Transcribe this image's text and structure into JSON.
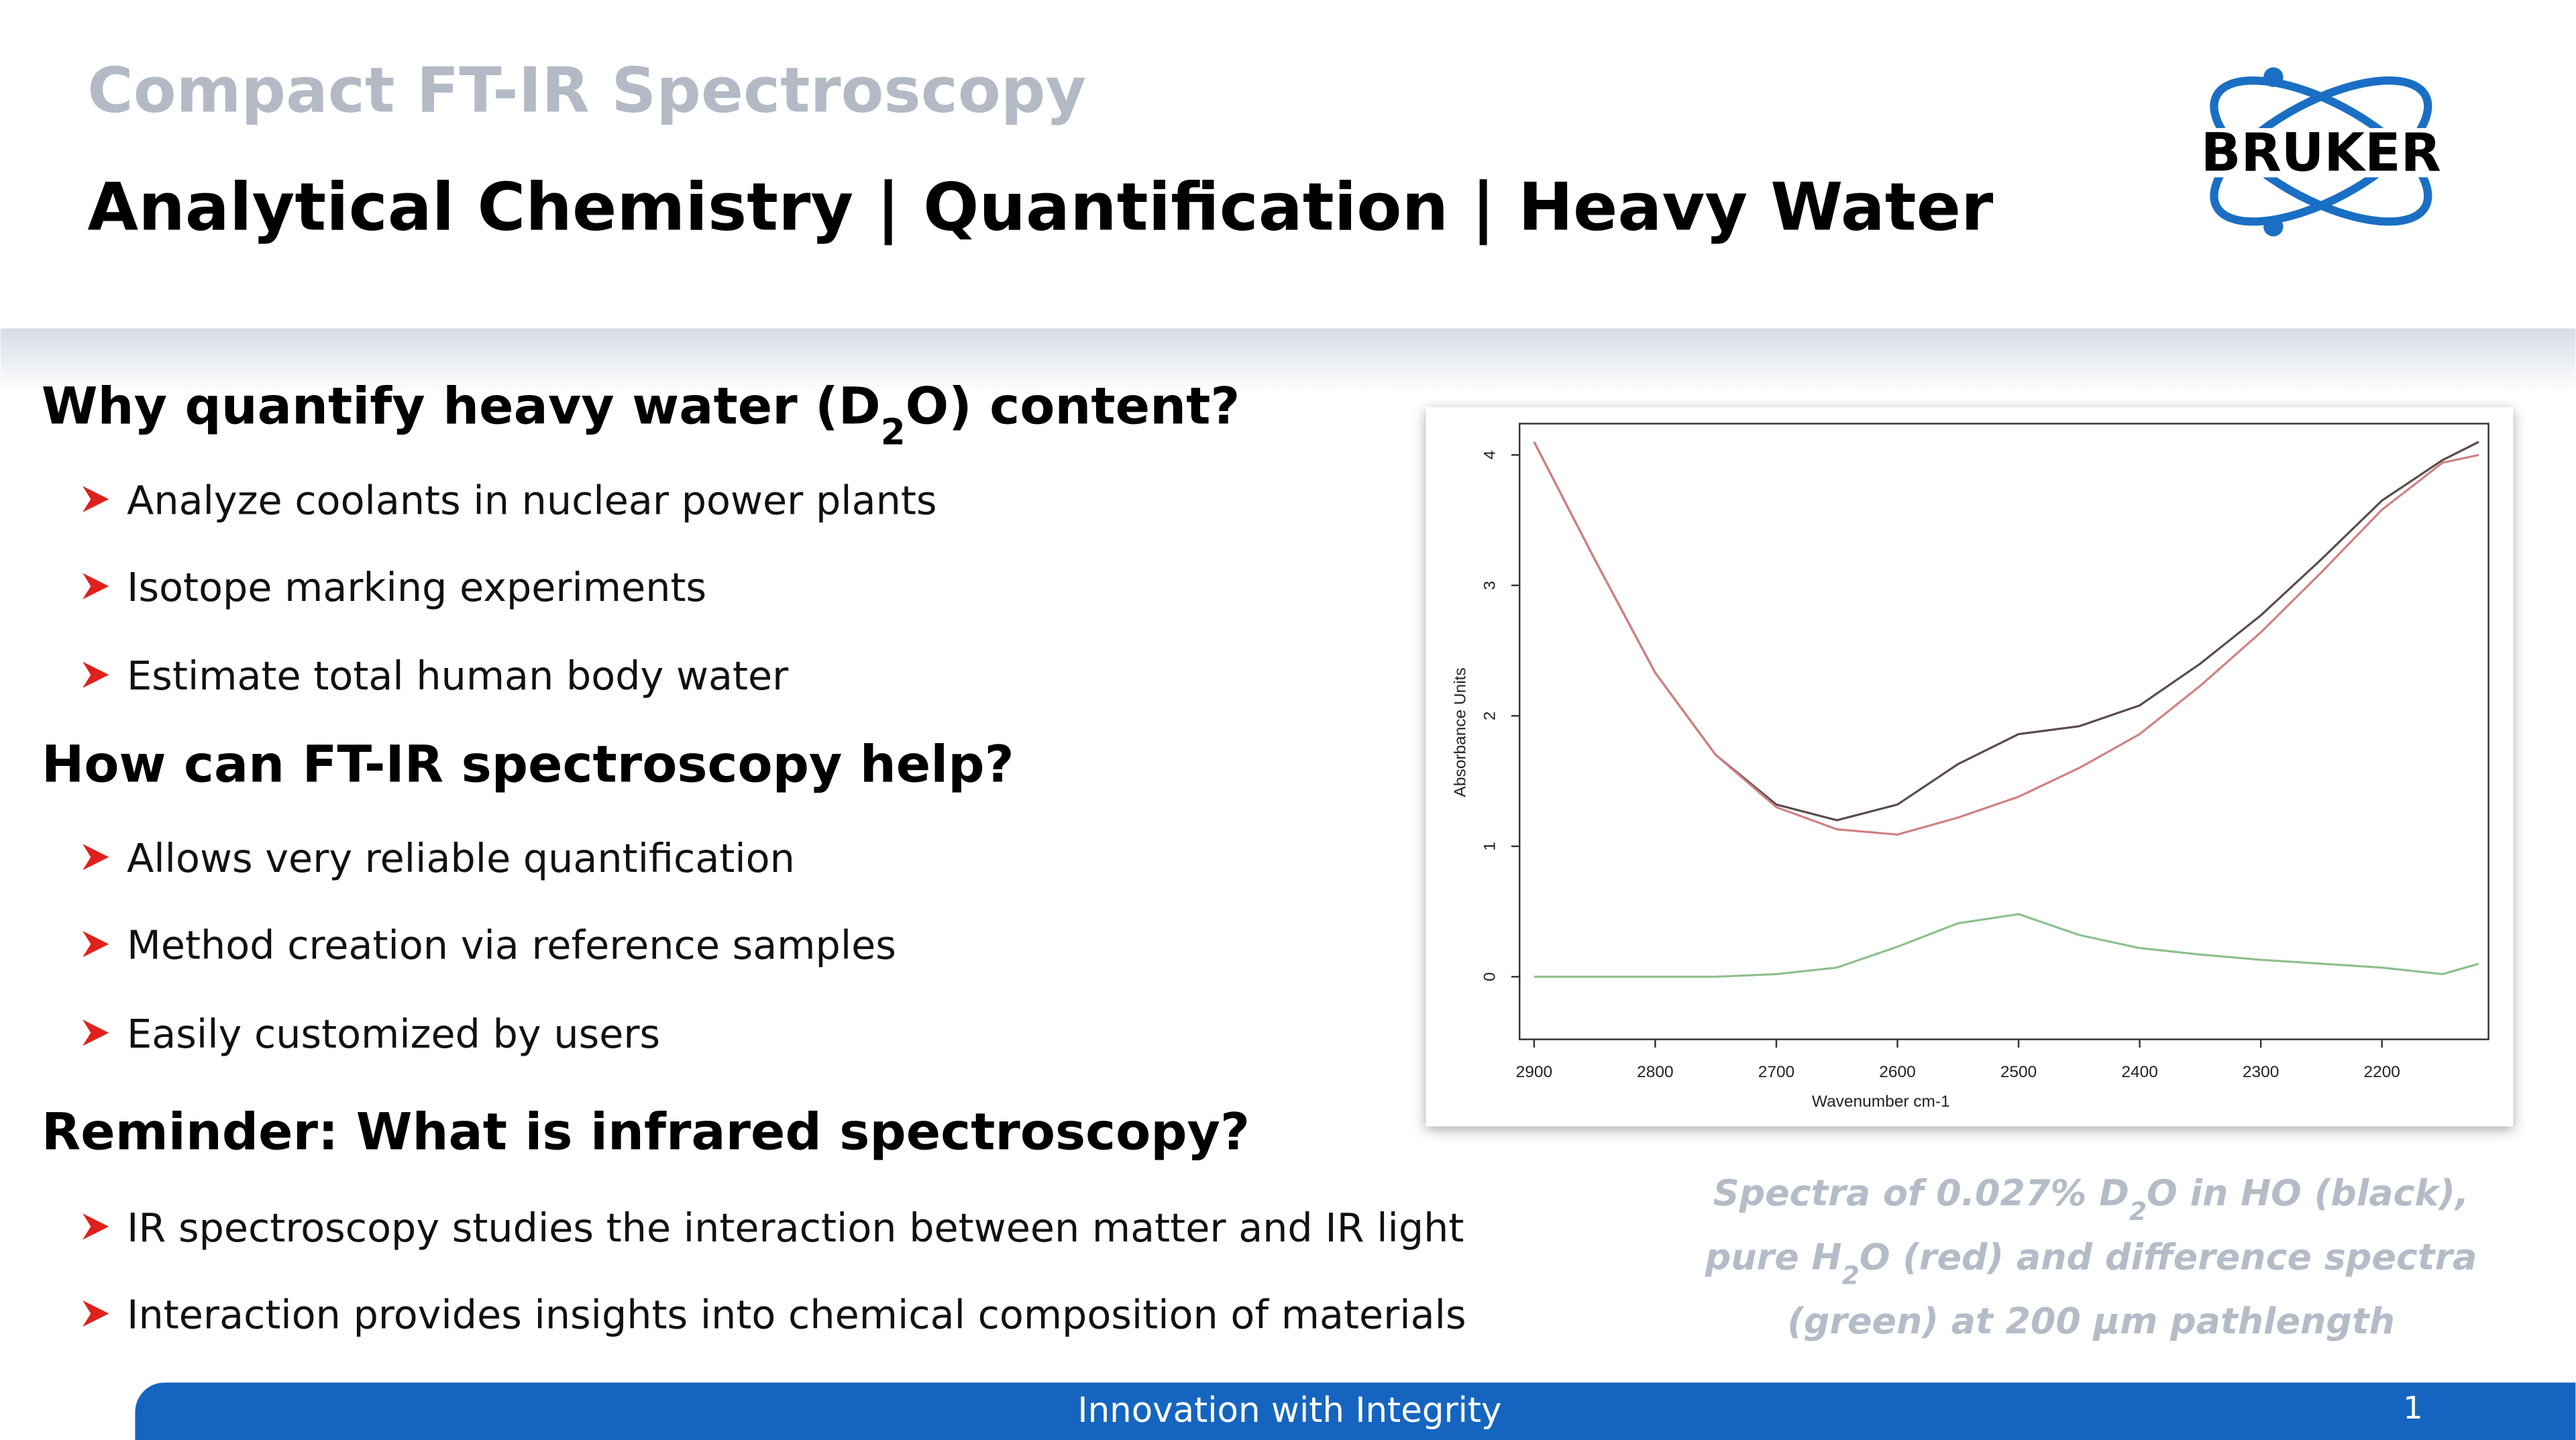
{
  "header": {
    "subtitle": "Compact FT-IR Spectroscopy",
    "title": "Analytical Chemistry | Quantification | Heavy Water",
    "logo": "BRUKER"
  },
  "sections": [
    {
      "heading": [
        "Why quantify heavy water (D",
        "2",
        "O) content?"
      ],
      "bullets": [
        "Analyze coolants in nuclear power plants",
        "Isotope marking experiments",
        "Estimate total human body water"
      ]
    },
    {
      "heading": [
        "How can FT-IR spectroscopy help?"
      ],
      "bullets": [
        "Allows very reliable quantification",
        "Method creation via reference samples",
        "Easily customized by users"
      ]
    },
    {
      "heading": [
        "Reminder: What is infrared spectroscopy?"
      ],
      "bullets": [
        "IR spectroscopy studies the interaction between matter and IR light",
        "Interaction provides insights into chemical composition of materials"
      ]
    }
  ],
  "caption": [
    [
      "Spectra of 0.027% D",
      "2",
      "O in HO (black),"
    ],
    [
      "pure H",
      "2",
      "O (red) and difference spectra"
    ],
    [
      "(green) at 200 μm pathlength"
    ]
  ],
  "footer": {
    "text": "Innovation with Integrity",
    "page": "1"
  },
  "chart_data": {
    "type": "line",
    "xlabel": "Wavenumber cm-1",
    "ylabel": "Absorbance Units",
    "x": [
      2900,
      2850,
      2800,
      2750,
      2700,
      2650,
      2600,
      2550,
      2500,
      2450,
      2400,
      2350,
      2300,
      2250,
      2200,
      2150,
      2120
    ],
    "series": [
      {
        "color": "#5a4a4a",
        "values": [
          4.1,
          3.2,
          2.33,
          1.7,
          1.32,
          1.2,
          1.32,
          1.63,
          1.86,
          1.92,
          2.08,
          2.4,
          2.77,
          3.2,
          3.65,
          3.96,
          4.1
        ]
      },
      {
        "color": "#d08080",
        "values": [
          4.1,
          3.2,
          2.33,
          1.7,
          1.3,
          1.13,
          1.09,
          1.22,
          1.38,
          1.6,
          1.86,
          2.23,
          2.64,
          3.1,
          3.58,
          3.94,
          4.0
        ]
      },
      {
        "color": "#8cc08c",
        "values": [
          0,
          0,
          0,
          0,
          0.02,
          0.07,
          0.23,
          0.41,
          0.48,
          0.32,
          0.22,
          0.17,
          0.13,
          0.1,
          0.07,
          0.02,
          0.1
        ]
      }
    ],
    "xlim": [
      2912,
      2112
    ],
    "ylim": [
      -0.48,
      4.24
    ],
    "xticks": [
      2900,
      2800,
      2700,
      2600,
      2500,
      2400,
      2300,
      2200
    ],
    "yticks": [
      0,
      1,
      2,
      3,
      4
    ]
  }
}
